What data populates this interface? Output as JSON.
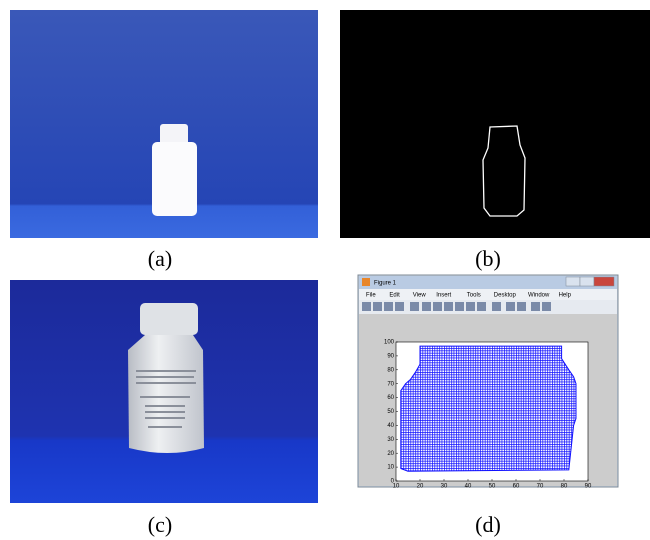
{
  "panels": [
    {
      "label": "(a)"
    },
    {
      "label": "(b)"
    },
    {
      "label": "(c)"
    },
    {
      "label": "(d)"
    }
  ],
  "figure_window": {
    "title": "Figure 1",
    "menu": [
      "File",
      "Edit",
      "View",
      "Insert",
      "Tools",
      "Desktop",
      "Window",
      "Help"
    ],
    "chart_data": {
      "type": "region",
      "color": "#1010ff",
      "x": [
        15,
        12,
        12,
        14,
        16,
        18,
        20,
        20,
        79,
        79,
        82,
        84,
        85,
        85,
        84,
        82
      ],
      "y": [
        7,
        9,
        65,
        70,
        73,
        78,
        84,
        97,
        97,
        88,
        80,
        75,
        70,
        45,
        40,
        8
      ],
      "xlim": [
        10,
        90
      ],
      "ylim": [
        0,
        100
      ],
      "xticks": [
        10,
        20,
        30,
        40,
        50,
        60,
        70,
        80,
        90
      ],
      "yticks": [
        0,
        10,
        20,
        30,
        40,
        50,
        60,
        70,
        80,
        90,
        100
      ]
    }
  }
}
